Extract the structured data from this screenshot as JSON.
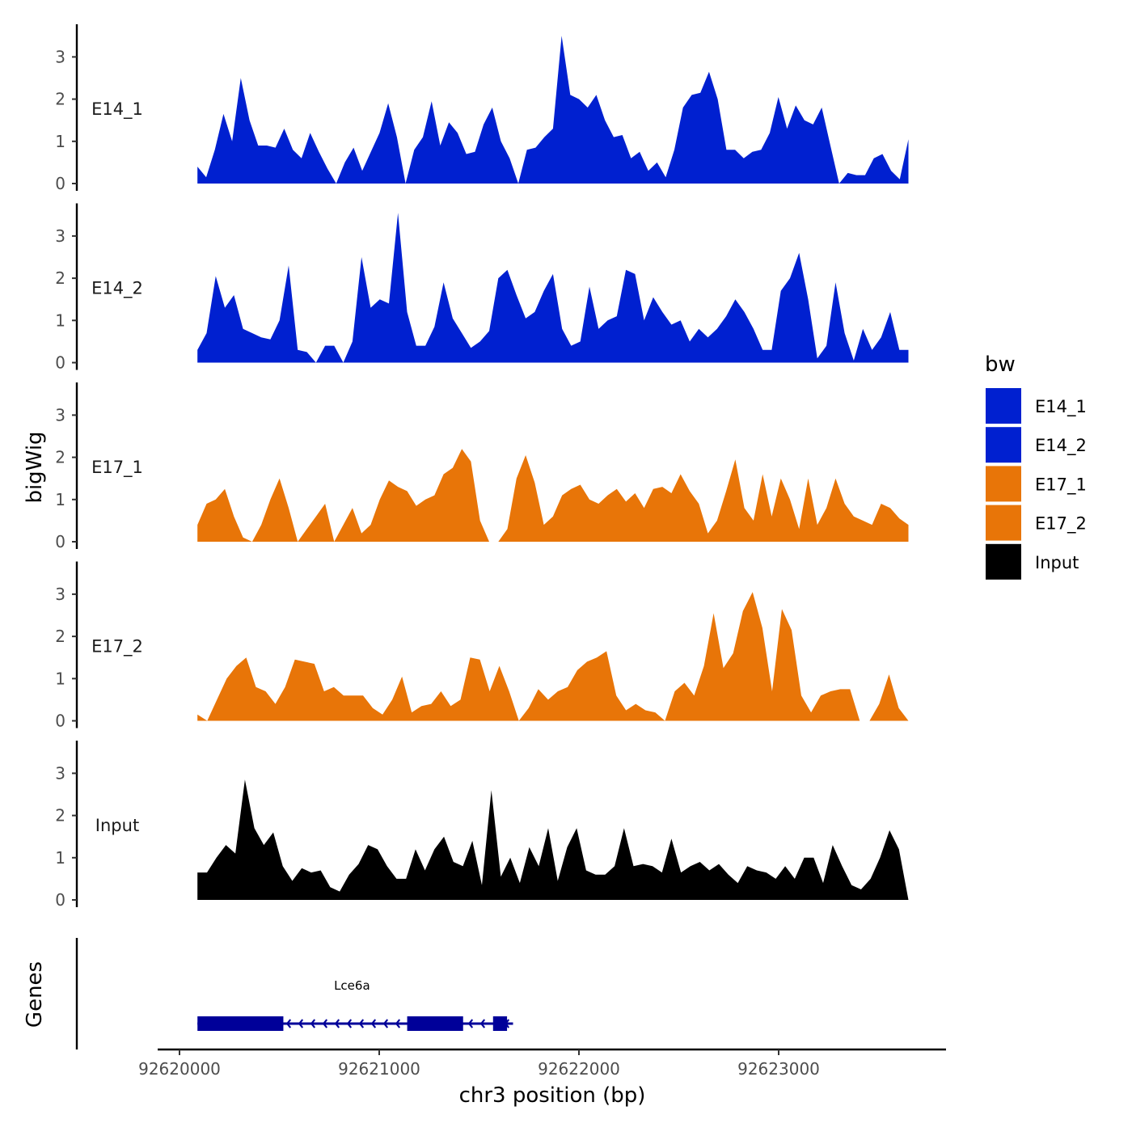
{
  "chart_data": {
    "type": "area",
    "y_axis_title": "bigWig",
    "genes_axis_title": "Genes",
    "x_axis_title": "chr3 position (bp)",
    "x_ticks": [
      92620000,
      92621000,
      92622000,
      92623000
    ],
    "x_tick_labels": [
      "92620000",
      "92621000",
      "92622000",
      "92623000"
    ],
    "xlim": [
      92619900,
      92623850
    ],
    "data_xrange": [
      92620090,
      92623650
    ],
    "ylim": [
      0,
      3.6
    ],
    "y_ticks": [
      0,
      1,
      2,
      3
    ],
    "y_tick_labels": [
      "0",
      "1",
      "2",
      "3"
    ],
    "legend": {
      "title": "bw",
      "entries": [
        {
          "label": "E14_1",
          "color": "#0020D0"
        },
        {
          "label": "E14_2",
          "color": "#0020D0"
        },
        {
          "label": "E17_1",
          "color": "#E87508"
        },
        {
          "label": "E17_2",
          "color": "#E87508"
        },
        {
          "label": "Input",
          "color": "#000000"
        }
      ]
    },
    "tracks": [
      {
        "name": "E14_1",
        "color": "#0020D0",
        "values": [
          0.4,
          0.15,
          0.8,
          1.65,
          1.0,
          2.5,
          1.5,
          0.9,
          0.9,
          0.85,
          1.3,
          0.8,
          0.6,
          1.2,
          0.75,
          0.35,
          0.0,
          0.5,
          0.85,
          0.3,
          0.75,
          1.2,
          1.9,
          1.1,
          0.0,
          0.8,
          1.1,
          1.95,
          0.9,
          1.45,
          1.2,
          0.7,
          0.75,
          1.4,
          1.8,
          1.0,
          0.6,
          0.0,
          0.8,
          0.85,
          1.1,
          1.3,
          3.5,
          2.1,
          2.0,
          1.8,
          2.1,
          1.5,
          1.1,
          1.15,
          0.6,
          0.75,
          0.3,
          0.5,
          0.15,
          0.8,
          1.8,
          2.1,
          2.15,
          2.65,
          2.0,
          0.8,
          0.8,
          0.6,
          0.75,
          0.8,
          1.2,
          2.05,
          1.3,
          1.85,
          1.5,
          1.4,
          1.8,
          0.9,
          0.0,
          0.25,
          0.2,
          0.2,
          0.6,
          0.7,
          0.3,
          0.1,
          1.05
        ]
      },
      {
        "name": "E14_2",
        "color": "#0020D0",
        "values": [
          0.3,
          0.7,
          2.05,
          1.3,
          1.6,
          0.8,
          0.7,
          0.6,
          0.55,
          1.0,
          2.3,
          0.3,
          0.25,
          0.0,
          0.4,
          0.4,
          0.0,
          0.5,
          2.5,
          1.3,
          1.5,
          1.4,
          3.55,
          1.2,
          0.4,
          0.4,
          0.85,
          1.9,
          1.05,
          0.7,
          0.35,
          0.5,
          0.75,
          2.0,
          2.2,
          1.6,
          1.05,
          1.2,
          1.7,
          2.1,
          0.8,
          0.4,
          0.5,
          1.8,
          0.8,
          1.0,
          1.1,
          2.2,
          2.1,
          1.0,
          1.55,
          1.2,
          0.9,
          1.0,
          0.5,
          0.8,
          0.6,
          0.8,
          1.1,
          1.5,
          1.2,
          0.8,
          0.3,
          0.3,
          1.7,
          2.0,
          2.6,
          1.5,
          0.1,
          0.4,
          1.9,
          0.7,
          0.05,
          0.8,
          0.3,
          0.6,
          1.2,
          0.3,
          0.3
        ]
      },
      {
        "name": "E17_1",
        "color": "#E87508",
        "values": [
          0.4,
          0.9,
          1.0,
          1.25,
          0.6,
          0.1,
          0.0,
          0.4,
          1.0,
          1.5,
          0.8,
          0.0,
          0.3,
          0.6,
          0.9,
          0.0,
          0.4,
          0.8,
          0.2,
          0.4,
          1.0,
          1.45,
          1.3,
          1.2,
          0.85,
          1.0,
          1.1,
          1.6,
          1.75,
          2.2,
          1.9,
          0.5,
          0.0,
          0.0,
          0.3,
          1.5,
          2.05,
          1.4,
          0.4,
          0.6,
          1.1,
          1.25,
          1.35,
          1.0,
          0.9,
          1.1,
          1.25,
          0.95,
          1.15,
          0.8,
          1.25,
          1.3,
          1.15,
          1.6,
          1.2,
          0.9,
          0.2,
          0.5,
          1.2,
          1.95,
          0.8,
          0.5,
          1.6,
          0.6,
          1.5,
          1.0,
          0.3,
          1.5,
          0.4,
          0.8,
          1.5,
          0.9,
          0.6,
          0.5,
          0.4,
          0.9,
          0.8,
          0.55,
          0.4
        ]
      },
      {
        "name": "E17_2",
        "color": "#E87508",
        "values": [
          0.15,
          0.0,
          0.5,
          1.0,
          1.3,
          1.5,
          0.8,
          0.7,
          0.4,
          0.8,
          1.45,
          1.4,
          1.35,
          0.7,
          0.8,
          0.6,
          0.6,
          0.6,
          0.3,
          0.15,
          0.5,
          1.05,
          0.2,
          0.35,
          0.4,
          0.7,
          0.35,
          0.5,
          1.5,
          1.45,
          0.7,
          1.3,
          0.7,
          0.0,
          0.3,
          0.75,
          0.5,
          0.7,
          0.8,
          1.2,
          1.4,
          1.5,
          1.65,
          0.6,
          0.25,
          0.4,
          0.25,
          0.2,
          0.0,
          0.7,
          0.9,
          0.6,
          1.3,
          2.55,
          1.25,
          1.6,
          2.6,
          3.05,
          2.2,
          0.7,
          2.65,
          2.15,
          0.6,
          0.2,
          0.6,
          0.7,
          0.75,
          0.75,
          0.0,
          0.0,
          0.4,
          1.1,
          0.3,
          0.0
        ]
      },
      {
        "name": "Input",
        "color": "#000000",
        "values": [
          0.65,
          0.65,
          1.0,
          1.3,
          1.1,
          2.85,
          1.7,
          1.3,
          1.6,
          0.8,
          0.45,
          0.75,
          0.65,
          0.7,
          0.3,
          0.2,
          0.6,
          0.85,
          1.3,
          1.2,
          0.8,
          0.5,
          0.5,
          1.2,
          0.7,
          1.2,
          1.5,
          0.9,
          0.8,
          1.4,
          0.35,
          2.6,
          0.55,
          1.0,
          0.4,
          1.25,
          0.8,
          1.7,
          0.45,
          1.25,
          1.7,
          0.7,
          0.6,
          0.6,
          0.8,
          1.7,
          0.8,
          0.85,
          0.8,
          0.65,
          1.45,
          0.65,
          0.8,
          0.9,
          0.7,
          0.85,
          0.6,
          0.4,
          0.8,
          0.7,
          0.65,
          0.5,
          0.8,
          0.5,
          1.0,
          1.0,
          0.4,
          1.3,
          0.8,
          0.35,
          0.25,
          0.5,
          1.0,
          1.65,
          1.2,
          0.0
        ]
      }
    ],
    "genes": [
      {
        "name": "Lce6a",
        "color": "#000099",
        "start": 92620090,
        "end": 92621670,
        "strand": "-",
        "exons": [
          [
            92620090,
            92620520
          ],
          [
            92621140,
            92621420
          ],
          [
            92621570,
            92621640
          ]
        ]
      }
    ]
  }
}
